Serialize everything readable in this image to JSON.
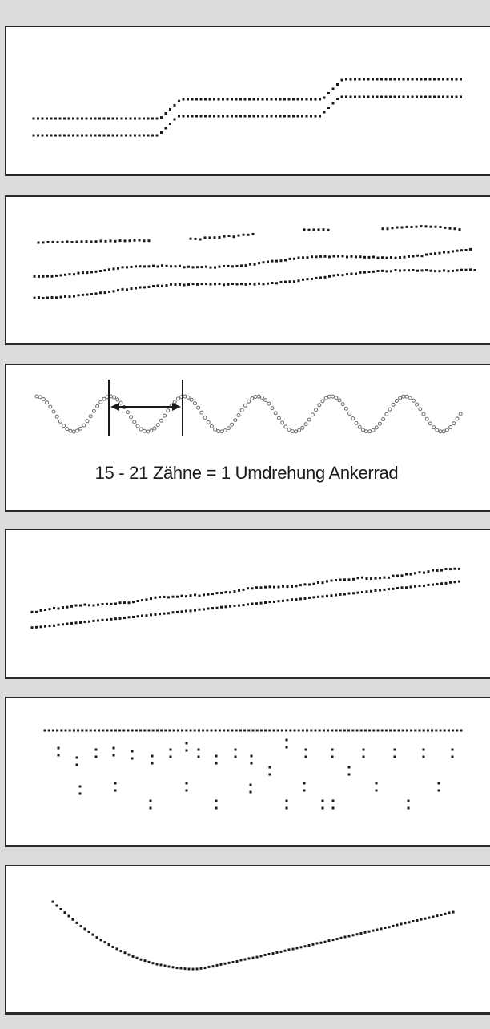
{
  "panels": [
    {
      "id": "panel-1"
    },
    {
      "id": "panel-2"
    },
    {
      "id": "panel-3",
      "caption": "15 - 21 Zähne = 1 Umdrehung Ankerrad"
    },
    {
      "id": "panel-4"
    },
    {
      "id": "panel-5"
    },
    {
      "id": "panel-6"
    }
  ],
  "colors": {
    "background": "#dcdcdc",
    "panel": "#ffffff",
    "ink": "#1a1a1a",
    "border": "#2a2a2a"
  }
}
